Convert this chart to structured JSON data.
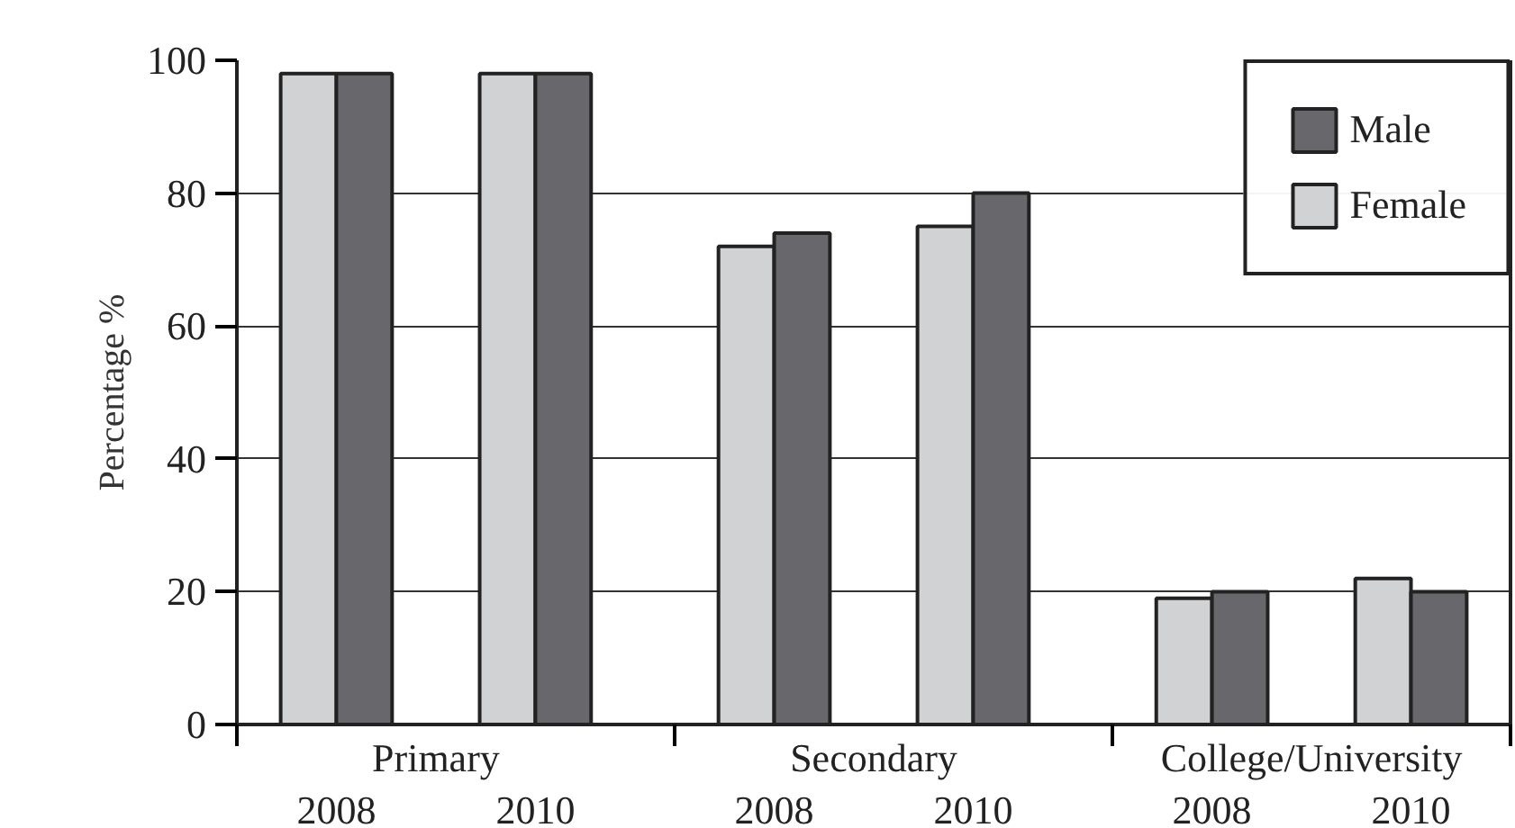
{
  "chart_data": {
    "type": "bar",
    "ylabel": "Percentage %",
    "categories": [
      "2008",
      "2010",
      "2008",
      "2010",
      "2008",
      "2010"
    ],
    "annotations": [
      "Primary",
      "Secondary",
      "College/University"
    ],
    "series": [
      {
        "name": "Female",
        "color": "#d1d2d4",
        "values": [
          98,
          98,
          72,
          75,
          19,
          22
        ]
      },
      {
        "name": "Male",
        "color": "#68686c",
        "values": [
          98,
          98,
          74,
          80,
          20,
          20
        ]
      }
    ],
    "ylim": [
      0,
      100
    ],
    "yticks": [
      0,
      20,
      40,
      60,
      80,
      100
    ],
    "grid": "y",
    "legend": "top right"
  }
}
